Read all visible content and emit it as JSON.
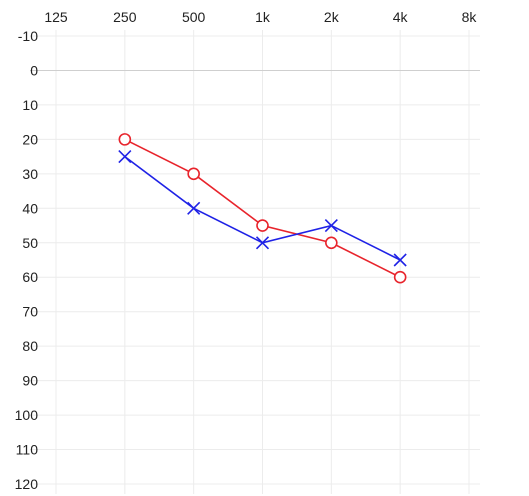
{
  "chart_data": {
    "type": "line",
    "x": [
      "125",
      "250",
      "500",
      "1k",
      "2k",
      "4k",
      "8k"
    ],
    "yticks": [
      -10,
      0,
      10,
      20,
      30,
      40,
      50,
      60,
      70,
      80,
      90,
      100,
      110,
      120
    ],
    "ylim": [
      -10,
      120
    ],
    "y_reversed": true,
    "x_axis_position": "top",
    "grid": true,
    "series": [
      {
        "marker": "circle",
        "color": "#e8242c",
        "values": [
          null,
          20,
          30,
          45,
          50,
          60,
          null
        ]
      },
      {
        "marker": "cross",
        "color": "#1f22e6",
        "values": [
          null,
          25,
          40,
          50,
          45,
          55,
          null
        ]
      }
    ]
  }
}
